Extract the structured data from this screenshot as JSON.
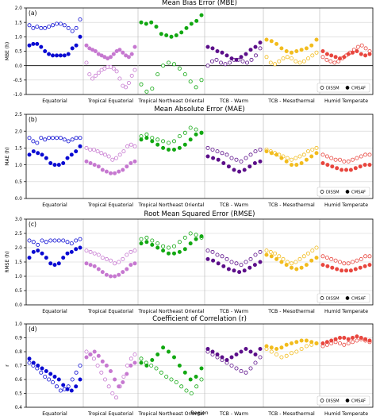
{
  "figure": {
    "xlabel": "Region",
    "regions": [
      "Equatorial",
      "Tropical Equatorial",
      "Tropical Northeast Oriental",
      "TCB - Warm",
      "TCB - Mesothermal",
      "Humid Temperate"
    ],
    "region_colors": [
      "#0a0ad2",
      "#c678d0",
      "#12a812",
      "#5c0f8a",
      "#f2bc1e",
      "#e8463e"
    ],
    "legend": {
      "open": "DISSM",
      "filled": "CMSAF"
    }
  },
  "chart_data": [
    {
      "type": "scatter",
      "title": "Mean Bias Error (MBE)",
      "panel_label": "(a)",
      "ylabel": "MBE (h)",
      "ylim": [
        -1.0,
        2.0
      ],
      "yticks": [
        "-1.0",
        "-0.5",
        "0.0",
        "0.5",
        "1.0",
        "1.5",
        "2.0"
      ],
      "ytick_values": [
        -1.0,
        -0.5,
        0.0,
        0.5,
        1.0,
        1.5,
        2.0
      ],
      "legend_position": "lower-right",
      "series": [
        {
          "name": "DISSM",
          "groups": [
            [
              1.4,
              1.3,
              1.35,
              1.3,
              1.3,
              1.35,
              1.4,
              1.45,
              1.45,
              1.4,
              1.3,
              1.2,
              1.3,
              1.6
            ],
            [
              0.1,
              -0.3,
              -0.45,
              -0.35,
              -0.25,
              -0.15,
              -0.1,
              -0.05,
              -0.05,
              -0.1,
              -0.2,
              -0.45,
              -0.7,
              -0.75,
              -0.6,
              -0.35,
              -0.15
            ],
            [
              -0.65,
              -0.9,
              -0.8,
              -0.3,
              0.0,
              0.1,
              0.05,
              -0.1,
              -0.3,
              -0.55,
              -0.75,
              -0.5
            ],
            [
              0.0,
              0.15,
              0.2,
              0.1,
              0.05,
              0.1,
              0.2,
              0.2,
              0.15,
              0.1,
              0.2,
              0.35,
              0.6
            ],
            [
              0.3,
              0.1,
              0.05,
              0.15,
              0.25,
              0.3,
              0.25,
              0.15,
              0.1,
              0.15,
              0.25,
              0.35,
              0.45
            ],
            [
              0.3,
              0.2,
              0.15,
              0.1,
              0.15,
              0.25,
              0.35,
              0.45,
              0.55,
              0.65,
              0.7,
              0.6,
              0.5
            ]
          ]
        },
        {
          "name": "CMSAF",
          "groups": [
            [
              0.7,
              0.75,
              0.75,
              0.65,
              0.5,
              0.4,
              0.35,
              0.35,
              0.35,
              0.35,
              0.4,
              0.6,
              0.7,
              1.0
            ],
            [
              0.7,
              0.6,
              0.55,
              0.5,
              0.4,
              0.35,
              0.3,
              0.25,
              0.3,
              0.4,
              0.5,
              0.55,
              0.45,
              0.35,
              0.3,
              0.4,
              0.65
            ],
            [
              1.5,
              1.45,
              1.5,
              1.35,
              1.1,
              1.05,
              1.0,
              1.05,
              1.15,
              1.3,
              1.45,
              1.55,
              1.75
            ],
            [
              0.65,
              0.6,
              0.5,
              0.45,
              0.35,
              0.25,
              0.2,
              0.3,
              0.4,
              0.55,
              0.65,
              0.8
            ],
            [
              0.9,
              0.85,
              0.75,
              0.6,
              0.5,
              0.45,
              0.5,
              0.55,
              0.6,
              0.7,
              0.9
            ],
            [
              0.5,
              0.4,
              0.35,
              0.3,
              0.25,
              0.3,
              0.4,
              0.45,
              0.5,
              0.4,
              0.35,
              0.4
            ]
          ]
        }
      ]
    },
    {
      "type": "scatter",
      "title": "Mean Absolute Error (MAE)",
      "panel_label": "(b)",
      "ylabel": "MAE (h)",
      "ylim": [
        0.0,
        2.5
      ],
      "yticks": [
        "0.0",
        "0.5",
        "1.0",
        "1.5",
        "2.0",
        "2.5"
      ],
      "ytick_values": [
        0.0,
        0.5,
        1.0,
        1.5,
        2.0,
        2.5
      ],
      "legend_position": "lower-right",
      "series": [
        {
          "name": "DISSM",
          "groups": [
            [
              1.8,
              1.7,
              1.65,
              1.8,
              1.75,
              1.8,
              1.8,
              1.8,
              1.8,
              1.75,
              1.7,
              1.75,
              1.8,
              1.8
            ],
            [
              1.5,
              1.45,
              1.45,
              1.4,
              1.35,
              1.3,
              1.25,
              1.15,
              1.2,
              1.3,
              1.4,
              1.55,
              1.6,
              1.55
            ],
            [
              1.85,
              1.9,
              1.8,
              1.75,
              1.7,
              1.65,
              1.7,
              1.85,
              1.95,
              2.1,
              2.05,
              1.95
            ],
            [
              1.5,
              1.45,
              1.4,
              1.35,
              1.3,
              1.2,
              1.15,
              1.1,
              1.2,
              1.3,
              1.4,
              1.45
            ],
            [
              1.45,
              1.4,
              1.35,
              1.3,
              1.25,
              1.2,
              1.15,
              1.2,
              1.25,
              1.3,
              1.4,
              1.45,
              1.5
            ],
            [
              1.3,
              1.25,
              1.2,
              1.15,
              1.15,
              1.1,
              1.1,
              1.15,
              1.2,
              1.25,
              1.3,
              1.3
            ]
          ]
        },
        {
          "name": "CMSAF",
          "groups": [
            [
              1.3,
              1.4,
              1.35,
              1.3,
              1.2,
              1.05,
              1.0,
              1.0,
              1.05,
              1.2,
              1.3,
              1.4,
              1.55
            ],
            [
              1.1,
              1.05,
              1.0,
              0.95,
              0.85,
              0.8,
              0.75,
              0.75,
              0.8,
              0.85,
              0.95,
              1.05,
              1.1
            ],
            [
              1.75,
              1.8,
              1.7,
              1.6,
              1.5,
              1.45,
              1.45,
              1.5,
              1.6,
              1.75,
              1.9,
              1.95
            ],
            [
              1.25,
              1.2,
              1.15,
              1.05,
              0.95,
              0.85,
              0.8,
              0.85,
              0.95,
              1.05,
              1.1
            ],
            [
              1.4,
              1.35,
              1.3,
              1.2,
              1.1,
              1.0,
              1.0,
              1.05,
              1.15,
              1.25,
              1.35
            ],
            [
              1.05,
              1.0,
              0.95,
              0.9,
              0.85,
              0.85,
              0.85,
              0.9,
              0.95,
              1.0,
              1.0
            ]
          ]
        }
      ]
    },
    {
      "type": "scatter",
      "title": "Root Mean Squared Error (RMSE)",
      "panel_label": "(c)",
      "ylabel": "RMSE (h)",
      "ylim": [
        0.0,
        3.0
      ],
      "yticks": [
        "0.0",
        "0.5",
        "1.0",
        "1.5",
        "2.0",
        "2.5",
        "3.0"
      ],
      "ytick_values": [
        0.0,
        0.5,
        1.0,
        1.5,
        2.0,
        2.5,
        3.0
      ],
      "legend_position": "lower-right",
      "series": [
        {
          "name": "DISSM",
          "groups": [
            [
              2.25,
              2.2,
              2.1,
              2.25,
              2.2,
              2.25,
              2.25,
              2.25,
              2.25,
              2.2,
              2.15,
              2.25,
              2.3
            ],
            [
              1.9,
              1.85,
              1.8,
              1.75,
              1.65,
              1.6,
              1.55,
              1.45,
              1.5,
              1.6,
              1.75,
              1.85,
              1.9
            ],
            [
              2.3,
              2.35,
              2.25,
              2.15,
              2.05,
              2.0,
              2.05,
              2.2,
              2.35,
              2.5,
              2.45,
              2.35
            ],
            [
              1.9,
              1.85,
              1.75,
              1.7,
              1.6,
              1.5,
              1.45,
              1.4,
              1.5,
              1.6,
              1.75,
              1.85
            ],
            [
              1.9,
              1.85,
              1.8,
              1.7,
              1.6,
              1.5,
              1.45,
              1.5,
              1.6,
              1.7,
              1.8,
              1.9,
              2.0
            ],
            [
              1.7,
              1.65,
              1.6,
              1.55,
              1.5,
              1.45,
              1.45,
              1.5,
              1.55,
              1.6,
              1.7,
              1.7
            ]
          ]
        },
        {
          "name": "CMSAF",
          "groups": [
            [
              1.65,
              1.85,
              1.9,
              1.8,
              1.65,
              1.45,
              1.4,
              1.45,
              1.65,
              1.8,
              1.85,
              1.95,
              2.0
            ],
            [
              1.45,
              1.4,
              1.35,
              1.25,
              1.15,
              1.05,
              1.0,
              1.0,
              1.05,
              1.15,
              1.25,
              1.4,
              1.45
            ],
            [
              2.15,
              2.2,
              2.1,
              2.0,
              1.9,
              1.8,
              1.8,
              1.85,
              1.95,
              2.15,
              2.3,
              2.4
            ],
            [
              1.6,
              1.55,
              1.45,
              1.35,
              1.25,
              1.2,
              1.15,
              1.2,
              1.3,
              1.4,
              1.5
            ],
            [
              1.75,
              1.7,
              1.6,
              1.5,
              1.4,
              1.3,
              1.25,
              1.3,
              1.4,
              1.55,
              1.65
            ],
            [
              1.4,
              1.35,
              1.3,
              1.25,
              1.2,
              1.2,
              1.2,
              1.25,
              1.3,
              1.35,
              1.4
            ]
          ]
        }
      ]
    },
    {
      "type": "scatter",
      "title": "Coefficient of Correlation (r)",
      "panel_label": "(d)",
      "ylabel": "r",
      "ylim": [
        0.4,
        1.0
      ],
      "yticks": [
        "0.4",
        "0.5",
        "0.6",
        "0.7",
        "0.8",
        "0.9",
        "1.0"
      ],
      "ytick_values": [
        0.4,
        0.5,
        0.6,
        0.7,
        0.8,
        0.9,
        1.0
      ],
      "legend_position": "lower-right",
      "series": [
        {
          "name": "DISSM",
          "groups": [
            [
              0.72,
              0.7,
              0.68,
              0.65,
              0.62,
              0.6,
              0.58,
              0.55,
              0.52,
              0.53,
              0.55,
              0.6,
              0.65,
              0.7
            ],
            [
              0.8,
              0.78,
              0.75,
              0.7,
              0.65,
              0.6,
              0.55,
              0.5,
              0.47,
              0.55,
              0.62,
              0.7,
              0.75,
              0.78
            ],
            [
              0.75,
              0.72,
              0.7,
              0.68,
              0.65,
              0.62,
              0.6,
              0.58,
              0.55,
              0.52,
              0.5,
              0.55,
              0.6
            ],
            [
              0.8,
              0.78,
              0.76,
              0.74,
              0.72,
              0.7,
              0.68,
              0.66,
              0.65,
              0.68,
              0.72,
              0.76
            ],
            [
              0.82,
              0.8,
              0.78,
              0.76,
              0.77,
              0.79,
              0.8,
              0.82,
              0.84,
              0.85,
              0.86
            ],
            [
              0.84,
              0.85,
              0.86,
              0.87,
              0.86,
              0.85,
              0.86,
              0.87,
              0.88,
              0.89,
              0.88,
              0.87
            ]
          ]
        },
        {
          "name": "CMSAF",
          "groups": [
            [
              0.75,
              0.72,
              0.7,
              0.68,
              0.66,
              0.64,
              0.62,
              0.6,
              0.56,
              0.53,
              0.52,
              0.55,
              0.6
            ],
            [
              0.76,
              0.78,
              0.8,
              0.77,
              0.73,
              0.7,
              0.66,
              0.6,
              0.55,
              0.58,
              0.64,
              0.7,
              0.72
            ],
            [
              0.72,
              0.7,
              0.74,
              0.78,
              0.83,
              0.8,
              0.76,
              0.7,
              0.65,
              0.6,
              0.62,
              0.68
            ],
            [
              0.82,
              0.8,
              0.78,
              0.76,
              0.74,
              0.76,
              0.78,
              0.8,
              0.82,
              0.8,
              0.78,
              0.82
            ],
            [
              0.84,
              0.83,
              0.82,
              0.83,
              0.85,
              0.86,
              0.87,
              0.88,
              0.88,
              0.87,
              0.86
            ],
            [
              0.86,
              0.87,
              0.88,
              0.89,
              0.9,
              0.9,
              0.89,
              0.9,
              0.91,
              0.9,
              0.89,
              0.88
            ]
          ]
        }
      ]
    }
  ]
}
